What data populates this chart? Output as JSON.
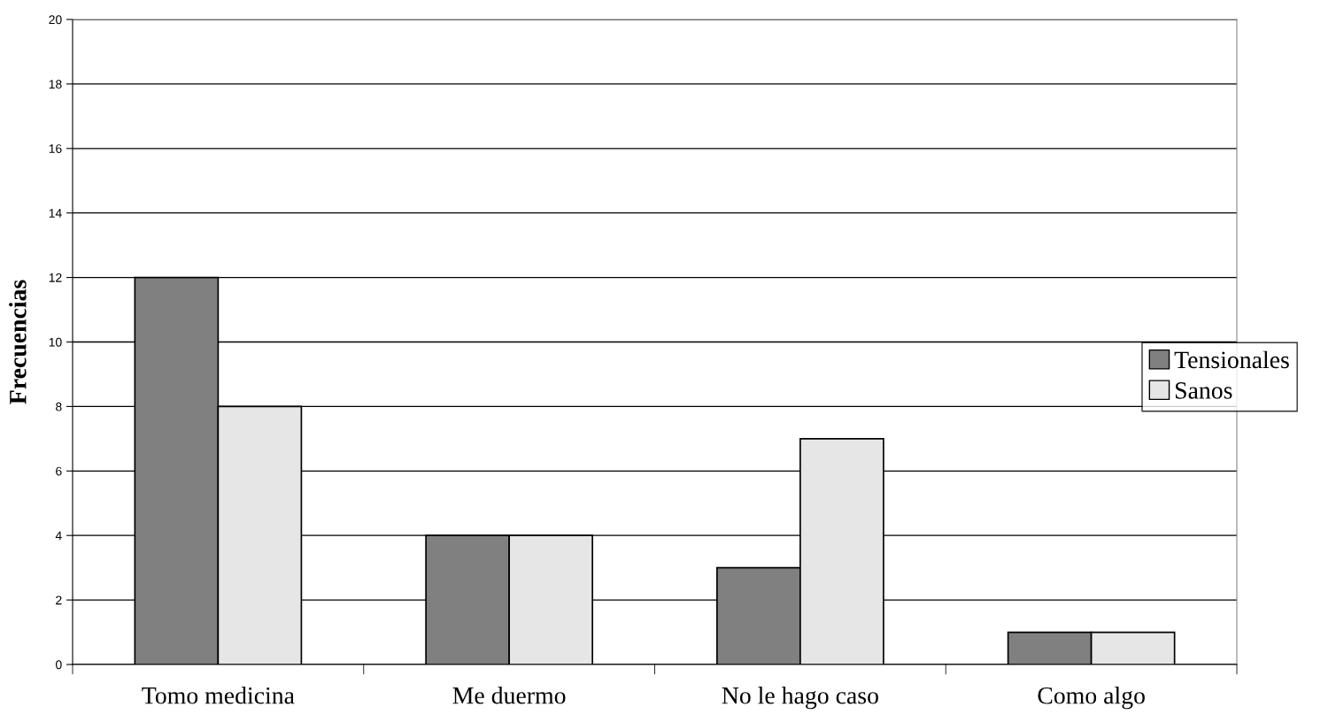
{
  "chart_data": {
    "type": "bar",
    "ylabel": "Frecuencias",
    "categories": [
      "Tomo medicina",
      "Me duermo",
      "No le hago caso",
      "Como algo"
    ],
    "series": [
      {
        "name": "Tensionales",
        "color": "#808080",
        "values": [
          12,
          4,
          3,
          1
        ]
      },
      {
        "name": "Sanos",
        "color": "#e6e6e6",
        "values": [
          8,
          4,
          7,
          1
        ]
      }
    ],
    "ylim": [
      0,
      20
    ],
    "yticks": [
      0,
      2,
      4,
      6,
      8,
      10,
      12,
      14,
      16,
      18,
      20
    ],
    "grid": "y",
    "legend": "right"
  }
}
